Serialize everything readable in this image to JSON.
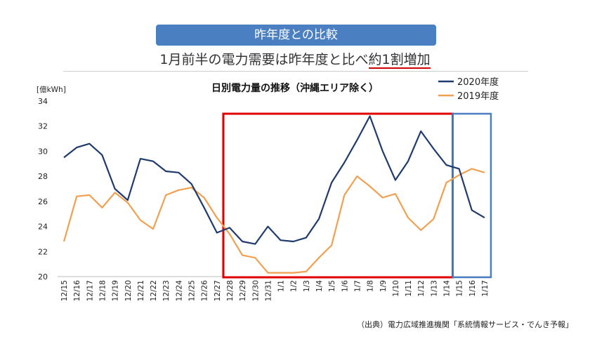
{
  "header": {
    "banner": "昨年度との比較",
    "headline_pre": "1月前半の電力需要は昨年度と比べ",
    "headline_highlight": "約1割増加"
  },
  "source": "（出典）電力広域推進機関「系統情報サービス・でんき予報」",
  "colors": {
    "series_2020": "#1f3b6e",
    "series_2019": "#f0a050",
    "banner": "#4a7fc1",
    "red_box": "#e00000",
    "blue_box": "#4a7fc1"
  },
  "chart_data": {
    "type": "line",
    "title": "日別電力量の推移（沖縄エリア除く）",
    "ylabel": "[億kWh]",
    "xlabel": "",
    "ylim": [
      20,
      34
    ],
    "yticks": [
      20,
      22,
      24,
      26,
      28,
      30,
      32,
      34
    ],
    "legend_position": "top-right",
    "grid": false,
    "categories": [
      "12/15",
      "12/16",
      "12/17",
      "12/18",
      "12/19",
      "12/20",
      "12/21",
      "12/22",
      "12/23",
      "12/24",
      "12/25",
      "12/26",
      "12/27",
      "12/28",
      "12/29",
      "12/30",
      "12/31",
      "1/1",
      "1/2",
      "1/3",
      "1/4",
      "1/5",
      "1/6",
      "1/7",
      "1/8",
      "1/9",
      "1/10",
      "1/11",
      "1/12",
      "1/13",
      "1/14",
      "1/15",
      "1/16",
      "1/17"
    ],
    "series": [
      {
        "name": "2020年度",
        "values": [
          29.5,
          30.3,
          30.6,
          29.7,
          27.0,
          26.1,
          29.4,
          29.2,
          28.4,
          28.3,
          27.4,
          25.5,
          23.5,
          23.9,
          22.8,
          22.6,
          24.0,
          22.9,
          22.8,
          23.1,
          24.6,
          27.5,
          29.1,
          30.9,
          32.8,
          30.0,
          27.7,
          29.2,
          31.6,
          30.2,
          28.9,
          28.6,
          25.3,
          24.7
        ]
      },
      {
        "name": "2019年度",
        "values": [
          22.8,
          26.4,
          26.5,
          25.5,
          26.7,
          25.9,
          24.5,
          23.8,
          26.5,
          26.9,
          27.1,
          26.3,
          24.7,
          23.4,
          21.7,
          21.5,
          20.3,
          20.3,
          20.3,
          20.4,
          21.5,
          22.5,
          26.5,
          28.0,
          27.2,
          26.3,
          26.6,
          24.7,
          23.7,
          24.6,
          27.5,
          28.1,
          28.6,
          28.3
        ]
      }
    ],
    "highlight_ranges": [
      {
        "from": "12/28",
        "to": "1/14",
        "color": "#e00000"
      },
      {
        "from": "1/15",
        "to": "1/17",
        "color": "#4a7fc1"
      }
    ]
  }
}
